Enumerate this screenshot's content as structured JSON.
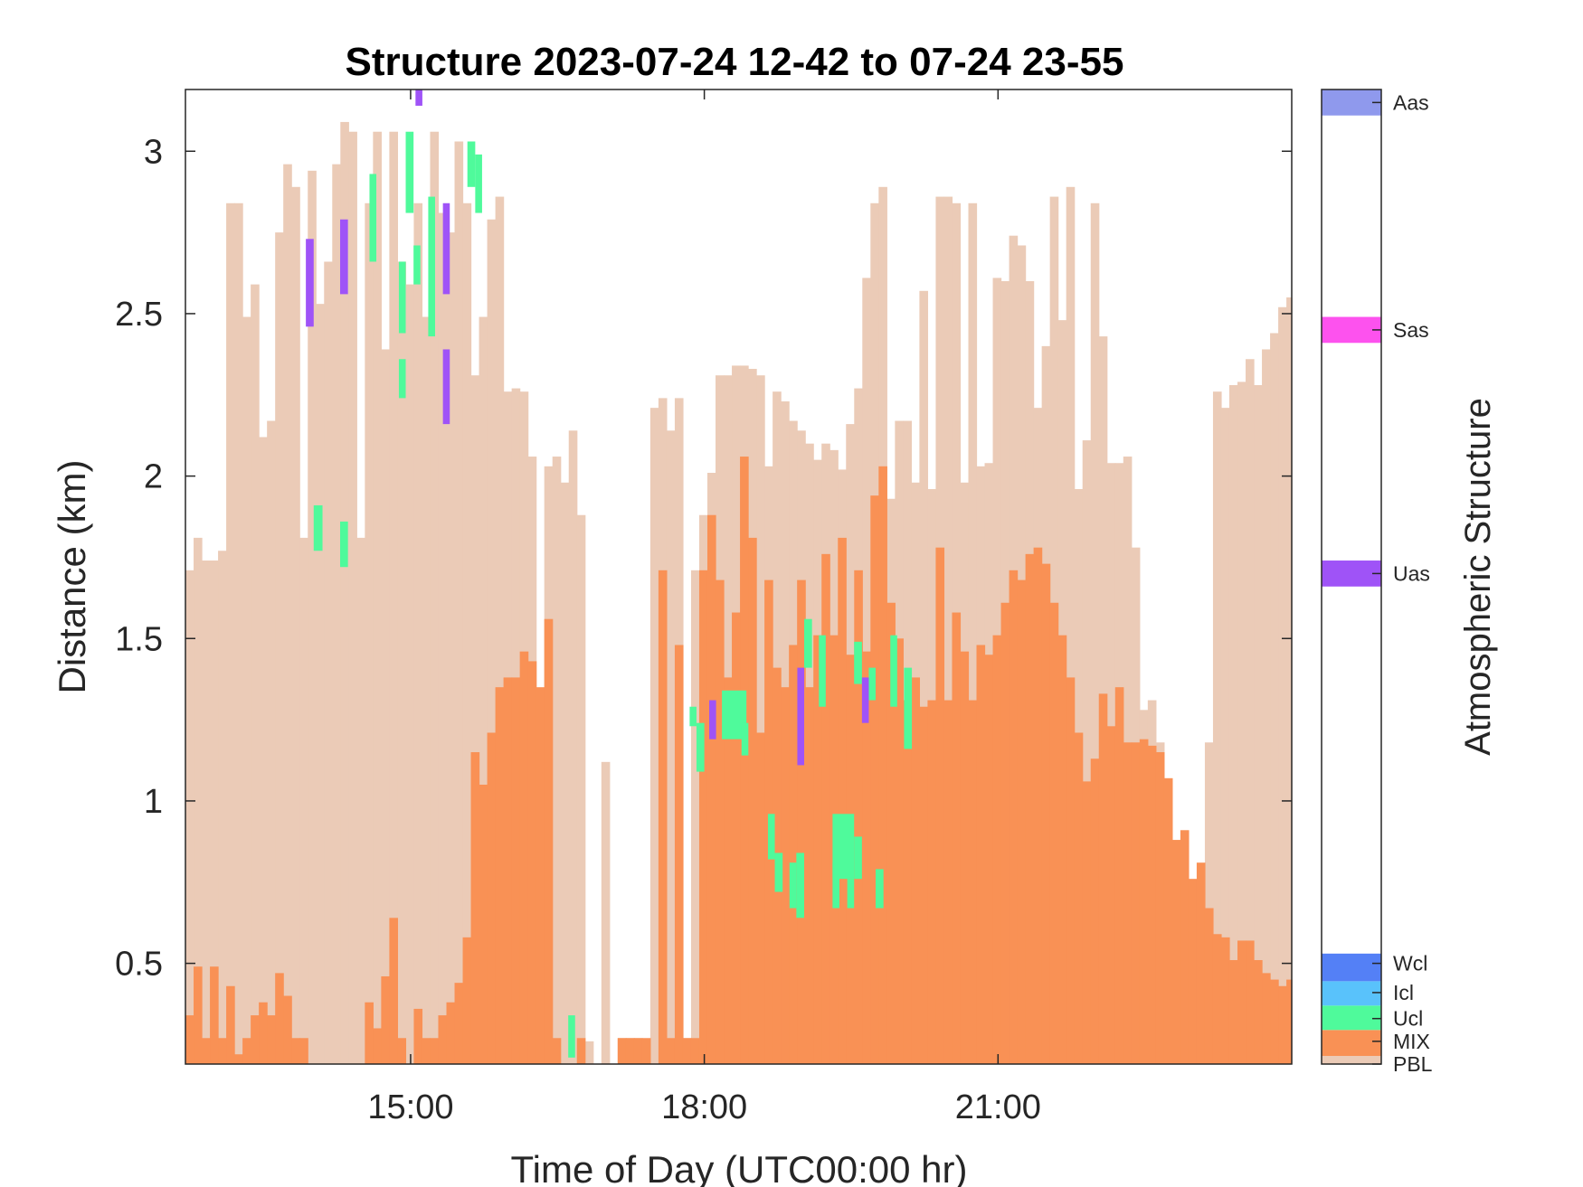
{
  "chart_data": {
    "type": "heatmap",
    "title": "Structure 2023-07-24 12-42 to 07-24 23-55",
    "xlabel": "Time of Day (UTC00:00 hr)",
    "ylabel": "Distance (km)",
    "colorbar_label": "Atmospheric Structure",
    "x_unit": "hours UTC",
    "xlim": [
      12.7,
      24.0
    ],
    "ylim": [
      0.19,
      3.19
    ],
    "bin_width_hours": 0.0833,
    "x_ticks": [
      {
        "value": 15,
        "label": "15:00"
      },
      {
        "value": 18,
        "label": "18:00"
      },
      {
        "value": 21,
        "label": "21:00"
      }
    ],
    "y_ticks": [
      {
        "value": 0.5,
        "label": "0.5"
      },
      {
        "value": 1,
        "label": "1"
      },
      {
        "value": 1.5,
        "label": "1.5"
      },
      {
        "value": 2,
        "label": "2"
      },
      {
        "value": 2.5,
        "label": "2.5"
      },
      {
        "value": 3,
        "label": "3"
      }
    ],
    "categories": [
      {
        "key": "PBL",
        "label": "PBL",
        "color": "#ebcbb7"
      },
      {
        "key": "MIX",
        "label": "MIX",
        "color": "#f99155"
      },
      {
        "key": "Ucl",
        "label": "Ucl",
        "color": "#4ffa9b"
      },
      {
        "key": "Icl",
        "label": "Icl",
        "color": "#59c2fb"
      },
      {
        "key": "Wcl",
        "label": "Wcl",
        "color": "#5480f6"
      },
      {
        "key": "Uas",
        "label": "Uas",
        "color": "#9f53f7"
      },
      {
        "key": "Sas",
        "label": "Sas",
        "color": "#fd52ee"
      },
      {
        "key": "Aas",
        "label": "Aas",
        "color": "#8f99ed"
      }
    ],
    "pbl_top_km": [
      1.71,
      1.81,
      1.74,
      1.74,
      1.77,
      2.84,
      2.84,
      2.49,
      2.59,
      2.12,
      2.17,
      2.75,
      2.96,
      2.89,
      1.81,
      2.94,
      2.53,
      2.66,
      2.96,
      3.09,
      3.06,
      1.81,
      2.84,
      3.06,
      2.39,
      3.06,
      2.66,
      2.59,
      2.84,
      2.49,
      3.06,
      2.81,
      2.75,
      3.03,
      2.84,
      2.31,
      2.49,
      2.79,
      2.86,
      2.26,
      2.27,
      2.26,
      2.06,
      0.27,
      2.03,
      2.06,
      1.98,
      2.14,
      1.88,
      0.26,
      null,
      1.12,
      0.17,
      0.27,
      0.27,
      0.27,
      null,
      2.21,
      2.24,
      2.14,
      2.24,
      0.27,
      1.71,
      1.88,
      2.01,
      2.31,
      2.31,
      2.34,
      2.34,
      2.33,
      2.31,
      2.03,
      2.26,
      2.23,
      2.17,
      2.14,
      2.1,
      2.05,
      2.1,
      2.08,
      2.02,
      2.16,
      2.27,
      2.61,
      2.84,
      2.89,
      1.93,
      2.17,
      2.17,
      1.98,
      2.57,
      1.96,
      2.86,
      2.86,
      2.84,
      1.98,
      2.84,
      2.03,
      2.04,
      2.61,
      2.6,
      2.74,
      2.71,
      2.6,
      2.21,
      2.4,
      2.86,
      2.48,
      2.89,
      1.96,
      2.11,
      2.84,
      2.43,
      2.04,
      2.04,
      2.06,
      1.78,
      1.28,
      1.31,
      1.18,
      0.96,
      0.64,
      0.64,
      0.51,
      0.47,
      1.18,
      2.26,
      2.21,
      2.28,
      2.29,
      2.36,
      2.28,
      2.39,
      2.44,
      2.52,
      2.55,
      2.25,
      2.31,
      2.2,
      2.25,
      2.25,
      2.37,
      2.33,
      2.21,
      2.28,
      2.29,
      2.63,
      2.59,
      2.51,
      2.48,
      2.51,
      2.48,
      2.54
    ],
    "mix_top_km": [
      0.34,
      0.49,
      0.27,
      0.49,
      0.27,
      0.43,
      0.22,
      0.27,
      0.34,
      0.38,
      0.34,
      0.47,
      0.4,
      0.27,
      0.27,
      null,
      null,
      null,
      null,
      null,
      null,
      null,
      0.38,
      0.3,
      0.46,
      0.64,
      0.27,
      null,
      0.36,
      0.27,
      0.27,
      0.34,
      0.38,
      0.44,
      0.58,
      1.15,
      1.05,
      1.21,
      1.35,
      1.38,
      1.38,
      1.46,
      1.43,
      1.35,
      1.56,
      0.27,
      null,
      null,
      0.27,
      null,
      null,
      null,
      null,
      0.27,
      0.27,
      0.27,
      0.27,
      null,
      1.71,
      0.27,
      1.48,
      0.27,
      0.27,
      1.71,
      1.88,
      1.68,
      1.38,
      1.58,
      2.06,
      1.81,
      1.21,
      1.68,
      1.41,
      1.35,
      1.48,
      1.68,
      1.35,
      1.51,
      1.76,
      1.51,
      1.81,
      1.45,
      1.71,
      1.46,
      1.94,
      2.03,
      1.61,
      1.5,
      1.31,
      1.38,
      1.29,
      1.31,
      1.78,
      1.31,
      1.58,
      1.46,
      1.31,
      1.48,
      1.45,
      1.51,
      1.61,
      1.71,
      1.68,
      1.76,
      1.78,
      1.73,
      1.61,
      1.51,
      1.38,
      1.21,
      1.06,
      1.13,
      1.33,
      1.23,
      1.35,
      1.18,
      1.18,
      1.19,
      1.17,
      1.15,
      1.07,
      0.88,
      0.91,
      0.76,
      0.81,
      0.67,
      0.59,
      0.58,
      0.51,
      0.57,
      0.57,
      0.51,
      0.47,
      0.45,
      0.43,
      0.45,
      0.3,
      0.41,
      0.44,
      0.41,
      0.34,
      0.46,
      0.29,
      0.52,
      0.46,
      0.47,
      0.46,
      0.52,
      0.44,
      0.44
    ],
    "cloud_segments": [
      {
        "category": "Ucl",
        "x_start": 14.01,
        "x_end": 14.1,
        "y_min": 1.77,
        "y_max": 1.91
      },
      {
        "category": "Ucl",
        "x_start": 14.28,
        "x_end": 14.36,
        "y_min": 1.72,
        "y_max": 1.86
      },
      {
        "category": "Ucl",
        "x_start": 14.58,
        "x_end": 14.65,
        "y_min": 2.66,
        "y_max": 2.93
      },
      {
        "category": "Ucl",
        "x_start": 14.88,
        "x_end": 14.95,
        "y_min": 2.24,
        "y_max": 2.36
      },
      {
        "category": "Ucl",
        "x_start": 14.88,
        "x_end": 14.95,
        "y_min": 2.44,
        "y_max": 2.66
      },
      {
        "category": "Ucl",
        "x_start": 14.95,
        "x_end": 15.03,
        "y_min": 2.81,
        "y_max": 3.06
      },
      {
        "category": "Ucl",
        "x_start": 15.03,
        "x_end": 15.1,
        "y_min": 2.59,
        "y_max": 2.71
      },
      {
        "category": "Ucl",
        "x_start": 15.18,
        "x_end": 15.25,
        "y_min": 2.43,
        "y_max": 2.86
      },
      {
        "category": "Ucl",
        "x_start": 15.58,
        "x_end": 15.66,
        "y_min": 2.89,
        "y_max": 3.03
      },
      {
        "category": "Ucl",
        "x_start": 15.66,
        "x_end": 15.73,
        "y_min": 2.81,
        "y_max": 2.99
      },
      {
        "category": "Ucl",
        "x_start": 16.61,
        "x_end": 16.68,
        "y_min": 0.21,
        "y_max": 0.34
      },
      {
        "category": "Ucl",
        "x_start": 17.85,
        "x_end": 17.92,
        "y_min": 1.23,
        "y_max": 1.29
      },
      {
        "category": "Ucl",
        "x_start": 17.92,
        "x_end": 18.0,
        "y_min": 1.09,
        "y_max": 1.24
      },
      {
        "category": "Ucl",
        "x_start": 18.18,
        "x_end": 18.43,
        "y_min": 1.19,
        "y_max": 1.34
      },
      {
        "category": "Ucl",
        "x_start": 18.38,
        "x_end": 18.45,
        "y_min": 1.14,
        "y_max": 1.24
      },
      {
        "category": "Ucl",
        "x_start": 18.65,
        "x_end": 18.72,
        "y_min": 0.82,
        "y_max": 0.96
      },
      {
        "category": "Ucl",
        "x_start": 18.72,
        "x_end": 18.8,
        "y_min": 0.72,
        "y_max": 0.84
      },
      {
        "category": "Ucl",
        "x_start": 18.87,
        "x_end": 18.94,
        "y_min": 0.67,
        "y_max": 0.81
      },
      {
        "category": "Ucl",
        "x_start": 18.94,
        "x_end": 19.02,
        "y_min": 0.64,
        "y_max": 0.84
      },
      {
        "category": "Ucl",
        "x_start": 19.02,
        "x_end": 19.1,
        "y_min": 1.41,
        "y_max": 1.56
      },
      {
        "category": "Ucl",
        "x_start": 19.17,
        "x_end": 19.24,
        "y_min": 1.29,
        "y_max": 1.51
      },
      {
        "category": "Ucl",
        "x_start": 19.31,
        "x_end": 19.38,
        "y_min": 0.67,
        "y_max": 0.81
      },
      {
        "category": "Ucl",
        "x_start": 19.31,
        "x_end": 19.53,
        "y_min": 0.76,
        "y_max": 0.96
      },
      {
        "category": "Ucl",
        "x_start": 19.46,
        "x_end": 19.53,
        "y_min": 0.67,
        "y_max": 0.76
      },
      {
        "category": "Ucl",
        "x_start": 19.53,
        "x_end": 19.61,
        "y_min": 0.76,
        "y_max": 0.89
      },
      {
        "category": "Ucl",
        "x_start": 19.53,
        "x_end": 19.61,
        "y_min": 1.36,
        "y_max": 1.49
      },
      {
        "category": "Ucl",
        "x_start": 19.68,
        "x_end": 19.75,
        "y_min": 1.31,
        "y_max": 1.41
      },
      {
        "category": "Ucl",
        "x_start": 19.75,
        "x_end": 19.83,
        "y_min": 0.67,
        "y_max": 0.79
      },
      {
        "category": "Ucl",
        "x_start": 19.9,
        "x_end": 19.97,
        "y_min": 1.29,
        "y_max": 1.51
      },
      {
        "category": "Ucl",
        "x_start": 20.04,
        "x_end": 20.12,
        "y_min": 1.16,
        "y_max": 1.41
      },
      {
        "category": "Uas",
        "x_start": 13.93,
        "x_end": 14.01,
        "y_min": 2.46,
        "y_max": 2.73
      },
      {
        "category": "Uas",
        "x_start": 14.28,
        "x_end": 14.36,
        "y_min": 2.56,
        "y_max": 2.79
      },
      {
        "category": "Uas",
        "x_start": 15.05,
        "x_end": 15.12,
        "y_min": 3.14,
        "y_max": 3.19
      },
      {
        "category": "Uas",
        "x_start": 15.33,
        "x_end": 15.4,
        "y_min": 2.56,
        "y_max": 2.84
      },
      {
        "category": "Uas",
        "x_start": 15.33,
        "x_end": 15.4,
        "y_min": 2.16,
        "y_max": 2.39
      },
      {
        "category": "Uas",
        "x_start": 18.05,
        "x_end": 18.12,
        "y_min": 1.19,
        "y_max": 1.31
      },
      {
        "category": "Uas",
        "x_start": 18.95,
        "x_end": 19.02,
        "y_min": 1.11,
        "y_max": 1.41
      },
      {
        "category": "Uas",
        "x_start": 19.61,
        "x_end": 19.68,
        "y_min": 1.24,
        "y_max": 1.38
      }
    ]
  },
  "colorbar_levels_km": {
    "PBL": 0.19,
    "MIX": 0.26,
    "Ucl": 0.33,
    "Icl": 0.41,
    "Wcl": 0.5,
    "Uas": 1.7,
    "Sas": 2.45,
    "Aas": 3.15
  }
}
